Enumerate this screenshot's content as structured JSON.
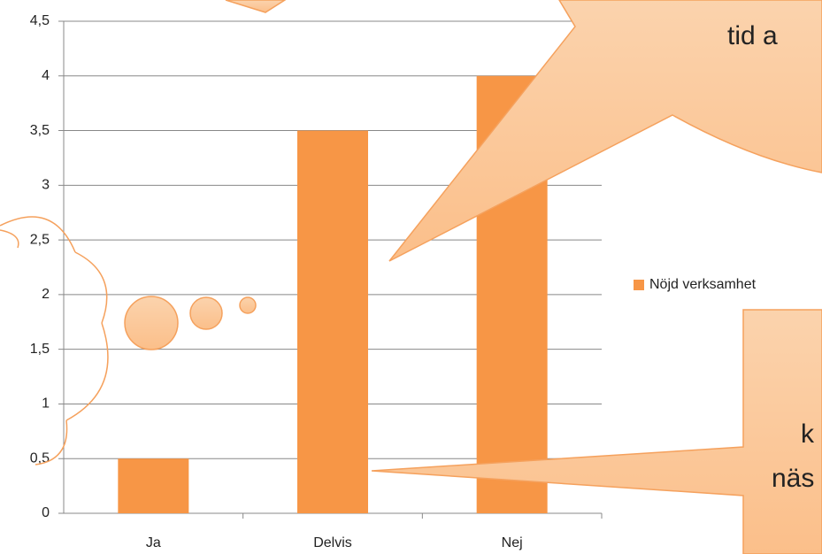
{
  "chart_data": {
    "type": "bar",
    "categories": [
      "Ja",
      "Delvis",
      "Nej"
    ],
    "series": [
      {
        "name": "Nöjd verksamhet",
        "color": "#f79646",
        "values": [
          0.5,
          3.5,
          4
        ]
      }
    ],
    "ylim": [
      0,
      4.5
    ],
    "yticks": [
      0,
      {
        "value": 0.5,
        "label": "0,5"
      },
      1,
      {
        "value": 1.5,
        "label": "1,5"
      },
      2,
      {
        "value": 2.5,
        "label": "2,5"
      },
      3,
      {
        "value": 3.5,
        "label": "3,5"
      },
      4,
      {
        "value": 4.5,
        "label": "4,5"
      }
    ],
    "grid": true,
    "legend": "right",
    "annotations": [
      "tid a",
      "k",
      "näs"
    ]
  }
}
